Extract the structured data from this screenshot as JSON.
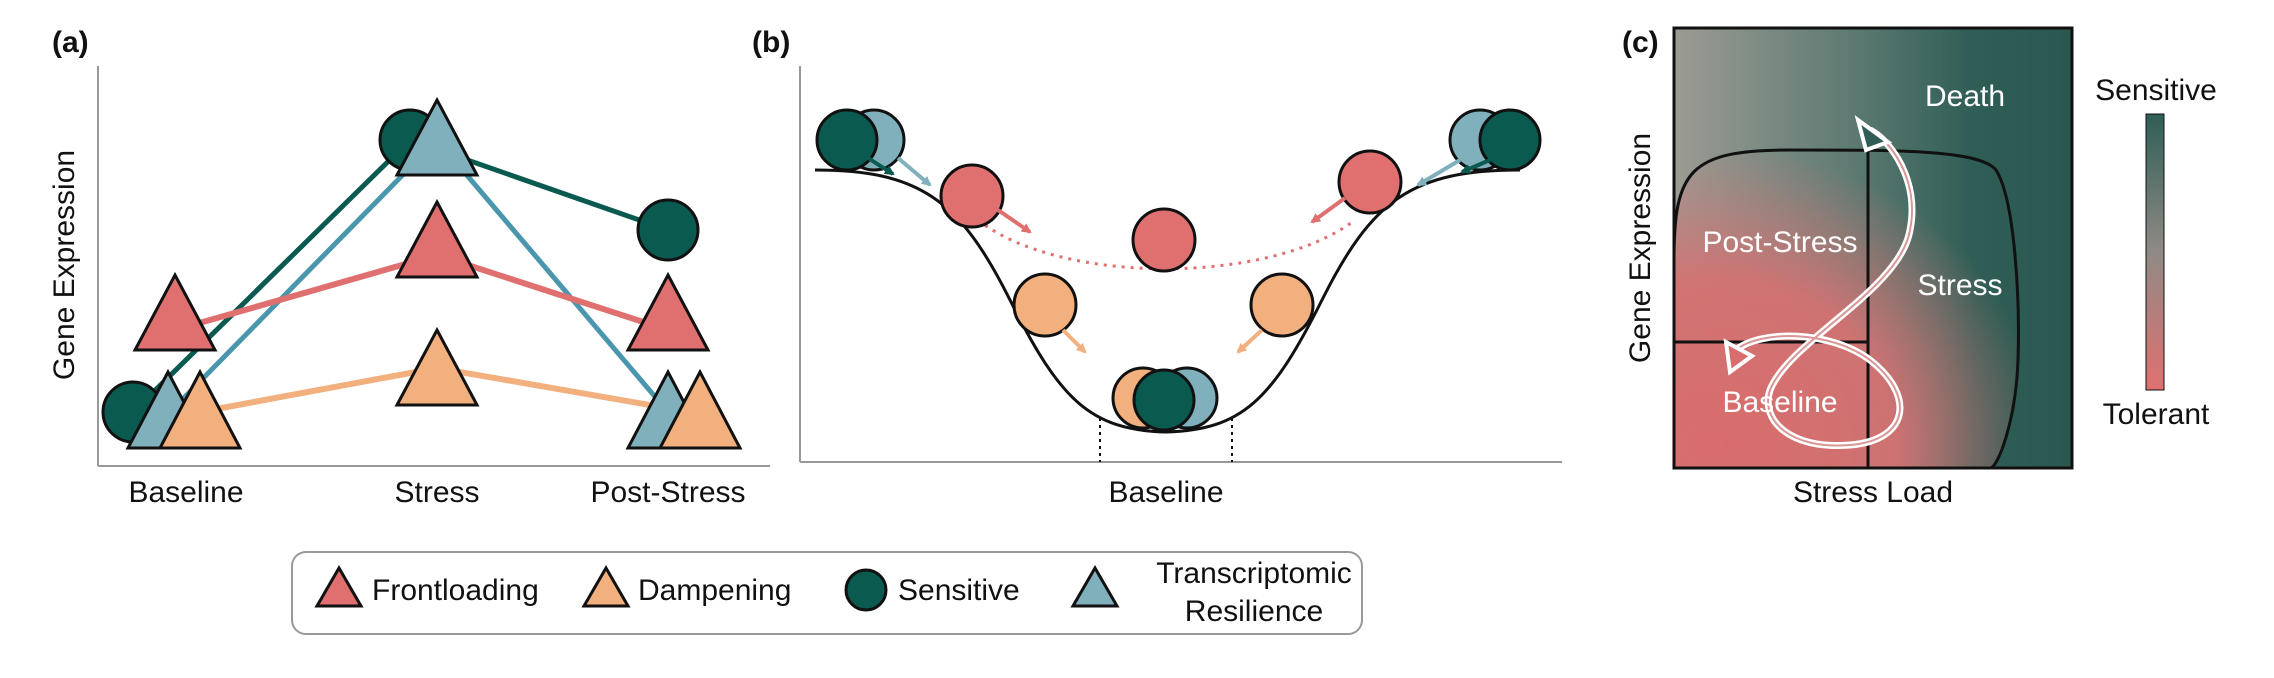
{
  "panel_a": {
    "tag": "(a)",
    "y_label": "Gene Expression",
    "x_labels": [
      "Baseline",
      "Stress",
      "Post-Stress"
    ]
  },
  "panel_b": {
    "tag": "(b)",
    "x_label": "Baseline"
  },
  "panel_c": {
    "tag": "(c)",
    "y_label": "Gene Expression",
    "x_label": "Stress Load",
    "region_labels": {
      "death": "Death",
      "post_stress": "Post-Stress",
      "stress": "Stress",
      "baseline": "Baseline"
    },
    "colorbar_top": "Sensitive",
    "colorbar_bottom": "Tolerant"
  },
  "legend": {
    "items": [
      {
        "shape": "triangle",
        "color": "#e07070",
        "label": "Frontloading"
      },
      {
        "shape": "triangle",
        "color": "#f2b07f",
        "label": "Dampening"
      },
      {
        "shape": "circle",
        "color": "#0b5a4f",
        "label": "Sensitive"
      },
      {
        "shape": "triangle",
        "color": "#7fb0bc",
        "label": "Transcriptomic",
        "label2": "Resilience"
      }
    ]
  },
  "colors": {
    "frontloading": "#e07070",
    "dampening": "#f2b07f",
    "sensitive": "#0b5a4f",
    "resilience": "#7fb0bc",
    "resilience_line": "#4a97ad",
    "heat_dark": "#2f5e56",
    "heat_light": "#9a9a92"
  }
}
